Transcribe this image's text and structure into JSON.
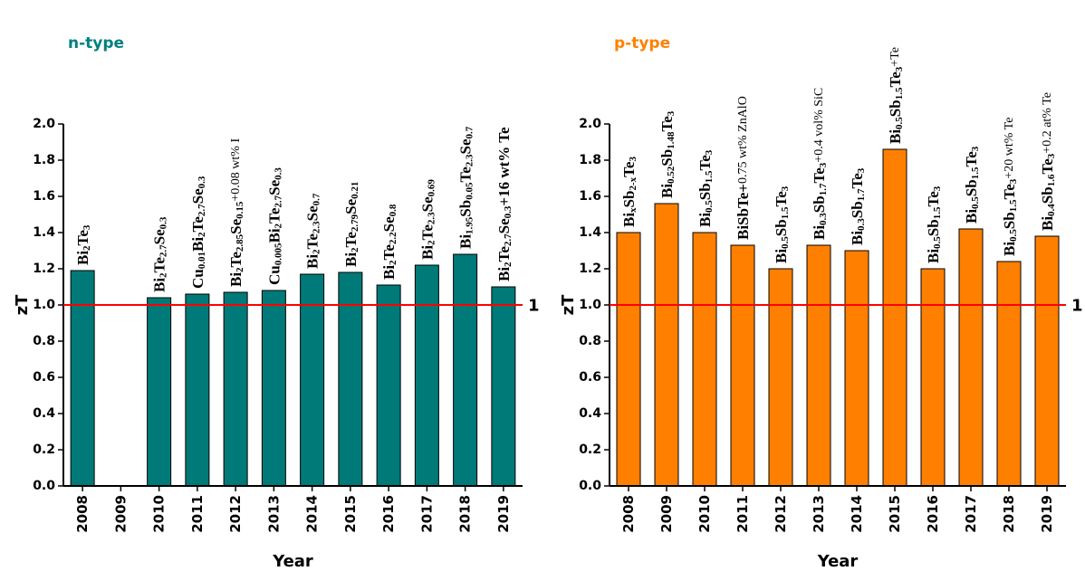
{
  "chart_data": [
    {
      "type": "bar",
      "title": "n-type",
      "title_color": "#008080",
      "xlabel": "Year",
      "ylabel": "zT",
      "categories": [
        "2008",
        "2009",
        "2010",
        "2011",
        "2012",
        "2013",
        "2014",
        "2015",
        "2016",
        "2017",
        "2018",
        "2019"
      ],
      "values": [
        1.19,
        null,
        1.04,
        1.06,
        1.07,
        1.08,
        1.17,
        1.18,
        1.11,
        1.22,
        1.28,
        1.1
      ],
      "color": "#007a78",
      "ylim": [
        0,
        2
      ],
      "yticks": [
        {
          "value": 0,
          "label": "0.0"
        },
        0.2,
        0.4,
        0.6,
        0.8,
        {
          "value": 1,
          "label": "1.0"
        },
        1.2,
        1.4,
        1.6,
        1.8,
        {
          "value": 2,
          "label": "2.0"
        }
      ],
      "hline": 1,
      "hline_color": "#ff0000",
      "bar_labels": [
        [
          {
            "text": "Bi"
          },
          {
            "sub": "2"
          },
          {
            "text": "Te"
          },
          {
            "sub": "3"
          }
        ],
        null,
        [
          {
            "text": "Bi"
          },
          {
            "sub": "2"
          },
          {
            "text": "Te"
          },
          {
            "sub": "2.7"
          },
          {
            "text": "Se"
          },
          {
            "sub": "0.3"
          }
        ],
        [
          {
            "text": "Cu"
          },
          {
            "sub": "0.01"
          },
          {
            "text": "Bi"
          },
          {
            "sub": "2"
          },
          {
            "text": "Te"
          },
          {
            "sub": "2.7"
          },
          {
            "text": "Se"
          },
          {
            "sub": "0.3"
          }
        ],
        [
          {
            "text": "Bi"
          },
          {
            "sub": "2"
          },
          {
            "text": "Te"
          },
          {
            "sub": "2.85"
          },
          {
            "text": "Se"
          },
          {
            "sub": "0.15"
          },
          {
            "note": "+0.08 wt% I"
          }
        ],
        [
          {
            "text": "Cu"
          },
          {
            "sub": "0.005"
          },
          {
            "text": "Bi"
          },
          {
            "sub": "2"
          },
          {
            "text": "Te"
          },
          {
            "sub": "2.7"
          },
          {
            "text": "Se"
          },
          {
            "sub": "0.3"
          }
        ],
        [
          {
            "text": "Bi"
          },
          {
            "sub": "2"
          },
          {
            "text": "Te"
          },
          {
            "sub": "2.3"
          },
          {
            "text": "Se"
          },
          {
            "sub": "0.7"
          }
        ],
        [
          {
            "text": "Bi"
          },
          {
            "sub": "2"
          },
          {
            "text": "Te"
          },
          {
            "sub": "2.79"
          },
          {
            "text": "Se"
          },
          {
            "sub": "0.21"
          }
        ],
        [
          {
            "text": "Bi"
          },
          {
            "sub": "2"
          },
          {
            "text": "Te"
          },
          {
            "sub": "2.2"
          },
          {
            "text": "Se"
          },
          {
            "sub": "0.8"
          }
        ],
        [
          {
            "text": "Bi"
          },
          {
            "sub": "2"
          },
          {
            "text": "Te"
          },
          {
            "sub": "2.3"
          },
          {
            "text": "Se"
          },
          {
            "sub": "0.69"
          }
        ],
        [
          {
            "text": "Bi"
          },
          {
            "sub": "1.95"
          },
          {
            "text": "Sb"
          },
          {
            "sub": "0.05"
          },
          {
            "text": "Te"
          },
          {
            "sub": "2.3"
          },
          {
            "text": "Se"
          },
          {
            "sub": "0.7"
          }
        ],
        [
          {
            "text": "Bi"
          },
          {
            "sub": "2"
          },
          {
            "text": "Te"
          },
          {
            "sub": "2.7"
          },
          {
            "text": "Se"
          },
          {
            "sub": "0.3"
          },
          {
            "text": "+16 wt% Te"
          }
        ]
      ]
    },
    {
      "type": "bar",
      "title": "p-type",
      "title_color": "#ff8000",
      "xlabel": "Year",
      "ylabel": "zT",
      "categories": [
        "2008",
        "2009",
        "2010",
        "2011",
        "2012",
        "2013",
        "2014",
        "2015",
        "2016",
        "2017",
        "2018",
        "2019"
      ],
      "values": [
        1.4,
        1.56,
        1.4,
        1.33,
        1.2,
        1.33,
        1.3,
        1.86,
        1.2,
        1.42,
        1.24,
        1.38
      ],
      "color": "#ff8000",
      "ylim": [
        0,
        2
      ],
      "yticks": [
        {
          "value": 0,
          "label": "0.0"
        },
        0.2,
        0.4,
        0.6,
        0.8,
        {
          "value": 1,
          "label": "1.0"
        },
        1.2,
        1.4,
        1.6,
        1.8,
        {
          "value": 2,
          "label": "2.0"
        }
      ],
      "hline": 1,
      "hline_color": "#ff0000",
      "bar_labels": [
        [
          {
            "text": "Bi"
          },
          {
            "sub": "x"
          },
          {
            "text": "Sb"
          },
          {
            "sub": "2-x"
          },
          {
            "text": "Te"
          },
          {
            "sub": "3"
          }
        ],
        [
          {
            "text": "Bi"
          },
          {
            "sub": "0.52"
          },
          {
            "text": "Sb"
          },
          {
            "sub": "1.48"
          },
          {
            "text": "Te"
          },
          {
            "sub": "3"
          }
        ],
        [
          {
            "text": "Bi"
          },
          {
            "sub": "0.5"
          },
          {
            "text": "Sb"
          },
          {
            "sub": "1.5"
          },
          {
            "text": "Te"
          },
          {
            "sub": "3"
          }
        ],
        [
          {
            "text": "BiSbTe+"
          },
          {
            "note": "0.75 wt% ZnAlO"
          }
        ],
        [
          {
            "text": "Bi"
          },
          {
            "sub": "0.5"
          },
          {
            "text": "Sb"
          },
          {
            "sub": "1.5"
          },
          {
            "text": "Te"
          },
          {
            "sub": "3"
          }
        ],
        [
          {
            "text": "Bi"
          },
          {
            "sub": "0.3"
          },
          {
            "text": "Sb"
          },
          {
            "sub": "1.7"
          },
          {
            "text": "Te"
          },
          {
            "sub": "3"
          },
          {
            "note": "+0.4 vol% SiC"
          }
        ],
        [
          {
            "text": "Bi"
          },
          {
            "sub": "0.3"
          },
          {
            "text": "Sb"
          },
          {
            "sub": "1.7"
          },
          {
            "text": "Te"
          },
          {
            "sub": "3"
          }
        ],
        [
          {
            "text": "Bi"
          },
          {
            "sub": "0.5"
          },
          {
            "text": "Sb"
          },
          {
            "sub": "1.5"
          },
          {
            "text": "Te"
          },
          {
            "sub": "3"
          },
          {
            "note": "+Te"
          }
        ],
        [
          {
            "text": "Bi"
          },
          {
            "sub": "0.5"
          },
          {
            "text": "Sb"
          },
          {
            "sub": "1.5"
          },
          {
            "text": "Te"
          },
          {
            "sub": "3"
          }
        ],
        [
          {
            "text": "Bi"
          },
          {
            "sub": "0.5"
          },
          {
            "text": "Sb"
          },
          {
            "sub": "1.5"
          },
          {
            "text": "Te"
          },
          {
            "sub": "3"
          }
        ],
        [
          {
            "text": "Bi"
          },
          {
            "sub": "0.5"
          },
          {
            "text": "Sb"
          },
          {
            "sub": "1.5"
          },
          {
            "text": "Te"
          },
          {
            "sub": "3"
          },
          {
            "note": "+20 wt% Te"
          }
        ],
        [
          {
            "text": "Bi"
          },
          {
            "sub": "0.4"
          },
          {
            "text": "Sb"
          },
          {
            "sub": "1.6"
          },
          {
            "text": "Te"
          },
          {
            "sub": "3"
          },
          {
            "note": "+0.2 at% Te"
          }
        ]
      ]
    }
  ]
}
